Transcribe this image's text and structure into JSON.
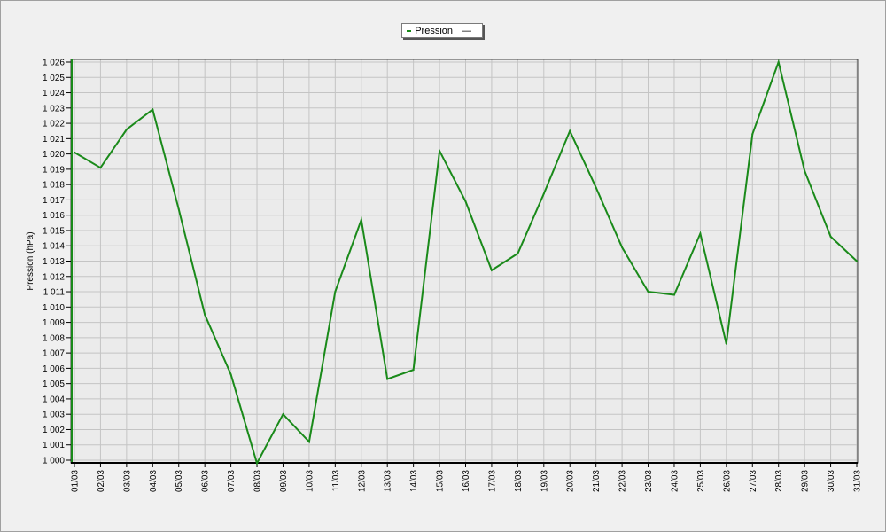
{
  "chart_data": {
    "type": "line",
    "title": "",
    "xlabel": "",
    "ylabel": "Pression (hPa)",
    "ylim": [
      1000,
      1026
    ],
    "grid": true,
    "legend_position": "top-center",
    "x": [
      "01/03",
      "02/03",
      "03/03",
      "04/03",
      "05/03",
      "06/03",
      "07/03",
      "08/03",
      "09/03",
      "10/03",
      "11/03",
      "12/03",
      "13/03",
      "14/03",
      "15/03",
      "16/03",
      "17/03",
      "18/03",
      "19/03",
      "20/03",
      "21/03",
      "22/03",
      "23/03",
      "24/03",
      "25/03",
      "26/03",
      "27/03",
      "28/03",
      "29/03",
      "30/03",
      "31/03"
    ],
    "yticks": [
      "1 000",
      "1 001",
      "1 002",
      "1 003",
      "1 004",
      "1 005",
      "1 006",
      "1 007",
      "1 008",
      "1 009",
      "1 010",
      "1 011",
      "1 012",
      "1 013",
      "1 014",
      "1 015",
      "1 016",
      "1 017",
      "1 018",
      "1 019",
      "1 020",
      "1 021",
      "1 022",
      "1 023",
      "1 024",
      "1 025",
      "1 026"
    ],
    "series": [
      {
        "name": "Pression",
        "color": "#1a8a1a",
        "values": [
          1020.1,
          1019.1,
          1021.6,
          1022.9,
          1016.4,
          1009.5,
          1005.6,
          999.8,
          1003.0,
          1001.2,
          1011.0,
          1015.7,
          1005.3,
          1005.9,
          1020.2,
          1016.9,
          1012.4,
          1013.5,
          1017.4,
          1021.5,
          1017.8,
          1013.9,
          1011.0,
          1010.8,
          1014.8,
          1007.6,
          1021.3,
          1026.0,
          1018.9,
          1014.6,
          1013.0
        ]
      }
    ]
  },
  "legend": {
    "label": "Pression",
    "marker": "—"
  }
}
